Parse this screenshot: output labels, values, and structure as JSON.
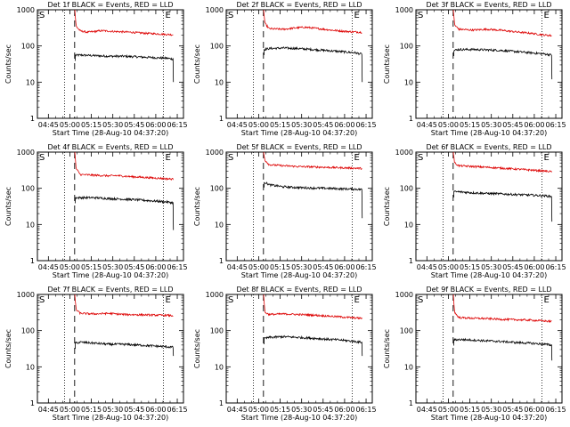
{
  "chart_data": {
    "type": "line",
    "layout": "3x3 grid",
    "shared": {
      "xlabel": "Start Time (28-Aug-10 04:37:20)",
      "ylabel": "Counts/sec",
      "yscale": "log",
      "ylim": [
        1,
        1000
      ],
      "y_ticks": [
        "1",
        "10",
        "100",
        "1000"
      ],
      "xlim_minutes_after_start": [
        0,
        102
      ],
      "x_ticks": [
        {
          "label": "04:45",
          "t": 7.67
        },
        {
          "label": "05:00",
          "t": 22.67
        },
        {
          "label": "05:15",
          "t": 37.67
        },
        {
          "label": "05:30",
          "t": 52.67
        },
        {
          "label": "05:45",
          "t": 67.67
        },
        {
          "label": "06:00",
          "t": 82.67
        },
        {
          "label": "06:15",
          "t": 97.67
        }
      ],
      "markers": {
        "S_label": "S",
        "E_label": "E",
        "s_dotted_t": 19.0,
        "s_dashed_t": 26.0,
        "e_dotted_t": 88.0,
        "data_end_t": 95.0
      },
      "series_colors": {
        "events": "#000000",
        "lld": "#dd0000"
      }
    },
    "panels": [
      {
        "title": "Det 1f BLACK = Events, RED = LLD",
        "series": [
          {
            "name": "Events",
            "points": [
              [
                26.5,
                55
              ],
              [
                30,
                56
              ],
              [
                40,
                54
              ],
              [
                50,
                52
              ],
              [
                60,
                52
              ],
              [
                70,
                50
              ],
              [
                80,
                48
              ],
              [
                90,
                46
              ],
              [
                94,
                44
              ]
            ],
            "end_drop": 10
          },
          {
            "name": "LLD",
            "points": [
              [
                26.2,
                900
              ],
              [
                27,
                350
              ],
              [
                30,
                260
              ],
              [
                35,
                240
              ],
              [
                45,
                265
              ],
              [
                55,
                250
              ],
              [
                65,
                240
              ],
              [
                75,
                225
              ],
              [
                85,
                215
              ],
              [
                94,
                205
              ]
            ]
          }
        ]
      },
      {
        "title": "Det 2f BLACK = Events, RED = LLD",
        "series": [
          {
            "name": "Events",
            "points": [
              [
                26.5,
                80
              ],
              [
                30,
                85
              ],
              [
                40,
                88
              ],
              [
                50,
                85
              ],
              [
                60,
                80
              ],
              [
                70,
                75
              ],
              [
                80,
                70
              ],
              [
                90,
                65
              ],
              [
                94,
                60
              ]
            ],
            "end_drop": 10
          },
          {
            "name": "LLD",
            "points": [
              [
                26.2,
                900
              ],
              [
                27,
                420
              ],
              [
                30,
                300
              ],
              [
                40,
                290
              ],
              [
                50,
                320
              ],
              [
                55,
                330
              ],
              [
                65,
                300
              ],
              [
                75,
                270
              ],
              [
                85,
                250
              ],
              [
                94,
                240
              ]
            ]
          }
        ]
      },
      {
        "title": "Det 3f BLACK = Events, RED = LLD",
        "series": [
          {
            "name": "Events",
            "points": [
              [
                26.5,
                75
              ],
              [
                30,
                80
              ],
              [
                40,
                80
              ],
              [
                50,
                78
              ],
              [
                60,
                75
              ],
              [
                70,
                70
              ],
              [
                80,
                65
              ],
              [
                90,
                60
              ],
              [
                94,
                57
              ]
            ],
            "end_drop": 12
          },
          {
            "name": "LLD",
            "points": [
              [
                26.2,
                900
              ],
              [
                27,
                380
              ],
              [
                30,
                290
              ],
              [
                40,
                275
              ],
              [
                50,
                290
              ],
              [
                60,
                270
              ],
              [
                70,
                245
              ],
              [
                80,
                225
              ],
              [
                90,
                200
              ],
              [
                94,
                195
              ]
            ]
          }
        ]
      },
      {
        "title": "Det 4f BLACK = Events, RED = LLD",
        "series": [
          {
            "name": "Events",
            "points": [
              [
                26.5,
                55
              ],
              [
                30,
                55
              ],
              [
                40,
                55
              ],
              [
                50,
                52
              ],
              [
                60,
                50
              ],
              [
                70,
                48
              ],
              [
                80,
                45
              ],
              [
                90,
                42
              ],
              [
                94,
                40
              ]
            ],
            "end_drop": 7
          },
          {
            "name": "LLD",
            "points": [
              [
                26.2,
                900
              ],
              [
                27,
                350
              ],
              [
                30,
                240
              ],
              [
                40,
                230
              ],
              [
                50,
                220
              ],
              [
                55,
                225
              ],
              [
                65,
                210
              ],
              [
                75,
                200
              ],
              [
                85,
                190
              ],
              [
                94,
                180
              ]
            ]
          }
        ]
      },
      {
        "title": "Det 5f BLACK = Events, RED = LLD",
        "series": [
          {
            "name": "Events",
            "points": [
              [
                26.5,
                150
              ],
              [
                30,
                125
              ],
              [
                40,
                110
              ],
              [
                50,
                105
              ],
              [
                60,
                102
              ],
              [
                70,
                100
              ],
              [
                80,
                97
              ],
              [
                90,
                95
              ],
              [
                94,
                93
              ]
            ],
            "end_drop": 15
          },
          {
            "name": "LLD",
            "points": [
              [
                26.2,
                900
              ],
              [
                27,
                600
              ],
              [
                30,
                450
              ],
              [
                40,
                420
              ],
              [
                50,
                400
              ],
              [
                60,
                390
              ],
              [
                70,
                380
              ],
              [
                80,
                370
              ],
              [
                90,
                360
              ],
              [
                94,
                355
              ]
            ]
          }
        ]
      },
      {
        "title": "Det 6f BLACK = Events, RED = LLD",
        "series": [
          {
            "name": "Events",
            "points": [
              [
                26.5,
                80
              ],
              [
                30,
                80
              ],
              [
                40,
                75
              ],
              [
                50,
                72
              ],
              [
                60,
                70
              ],
              [
                70,
                67
              ],
              [
                80,
                65
              ],
              [
                90,
                62
              ],
              [
                94,
                60
              ]
            ],
            "end_drop": 12
          },
          {
            "name": "LLD",
            "points": [
              [
                26.2,
                900
              ],
              [
                27,
                500
              ],
              [
                30,
                420
              ],
              [
                40,
                400
              ],
              [
                50,
                380
              ],
              [
                60,
                360
              ],
              [
                70,
                340
              ],
              [
                80,
                320
              ],
              [
                90,
                300
              ],
              [
                94,
                290
              ]
            ]
          }
        ]
      },
      {
        "title": "Det 7f BLACK = Events, RED = LLD",
        "series": [
          {
            "name": "Events",
            "points": [
              [
                26.5,
                45
              ],
              [
                30,
                48
              ],
              [
                40,
                45
              ],
              [
                50,
                42
              ],
              [
                60,
                42
              ],
              [
                70,
                40
              ],
              [
                80,
                38
              ],
              [
                90,
                36
              ],
              [
                94,
                35
              ]
            ],
            "end_drop": 20
          },
          {
            "name": "LLD",
            "points": [
              [
                26.2,
                900
              ],
              [
                27,
                380
              ],
              [
                30,
                300
              ],
              [
                40,
                290
              ],
              [
                50,
                300
              ],
              [
                60,
                280
              ],
              [
                70,
                275
              ],
              [
                80,
                270
              ],
              [
                90,
                265
              ],
              [
                94,
                260
              ]
            ]
          }
        ]
      },
      {
        "title": "Det 8f BLACK = Events, RED = LLD",
        "series": [
          {
            "name": "Events",
            "points": [
              [
                26.5,
                60
              ],
              [
                30,
                65
              ],
              [
                40,
                68
              ],
              [
                50,
                65
              ],
              [
                60,
                62
              ],
              [
                70,
                58
              ],
              [
                80,
                55
              ],
              [
                90,
                50
              ],
              [
                94,
                48
              ]
            ],
            "end_drop": 20
          },
          {
            "name": "LLD",
            "points": [
              [
                26.2,
                900
              ],
              [
                27,
                320
              ],
              [
                30,
                280
              ],
              [
                40,
                290
              ],
              [
                50,
                280
              ],
              [
                60,
                270
              ],
              [
                70,
                255
              ],
              [
                80,
                240
              ],
              [
                90,
                225
              ],
              [
                94,
                220
              ]
            ]
          }
        ]
      },
      {
        "title": "Det 9f BLACK = Events, RED = LLD",
        "series": [
          {
            "name": "Events",
            "points": [
              [
                26.5,
                55
              ],
              [
                30,
                57
              ],
              [
                40,
                55
              ],
              [
                50,
                52
              ],
              [
                60,
                50
              ],
              [
                70,
                47
              ],
              [
                80,
                45
              ],
              [
                90,
                42
              ],
              [
                94,
                40
              ]
            ],
            "end_drop": 15
          },
          {
            "name": "LLD",
            "points": [
              [
                26.2,
                900
              ],
              [
                27,
                320
              ],
              [
                30,
                230
              ],
              [
                40,
                220
              ],
              [
                50,
                215
              ],
              [
                60,
                205
              ],
              [
                70,
                200
              ],
              [
                80,
                195
              ],
              [
                90,
                185
              ],
              [
                94,
                180
              ]
            ]
          }
        ]
      }
    ]
  }
}
